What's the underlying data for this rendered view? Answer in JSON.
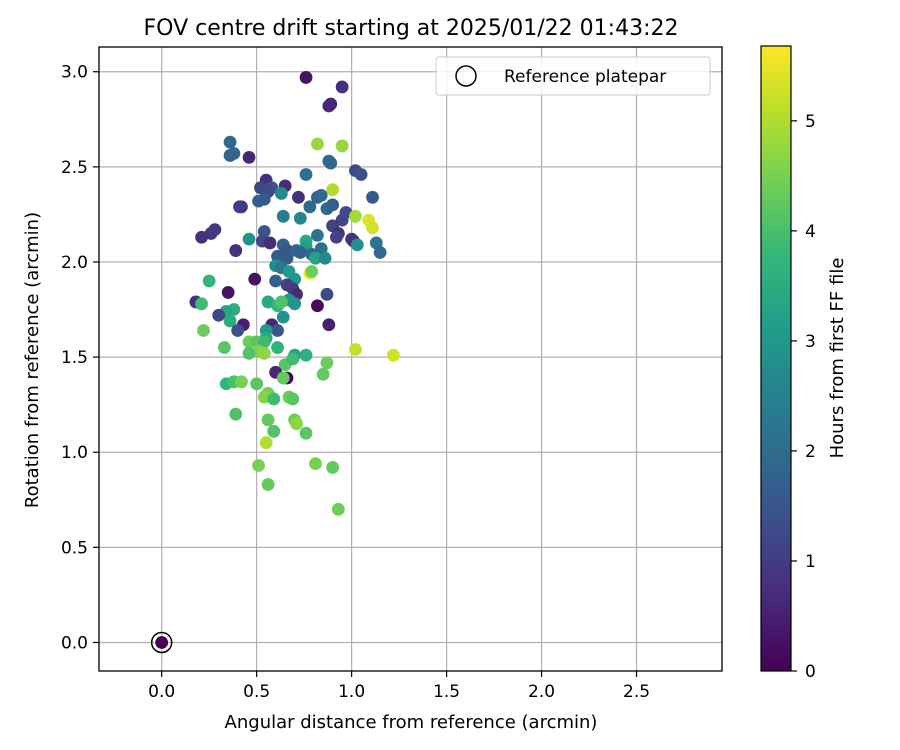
{
  "chart_data": {
    "type": "scatter",
    "title": "FOV centre drift starting at 2025/01/22 01:43:22",
    "xlabel": "Angular distance from reference (arcmin)",
    "ylabel": "Rotation from reference (arcmin)",
    "xlim": [
      -0.33,
      2.95
    ],
    "ylim": [
      -0.15,
      3.13
    ],
    "xticks": [
      "0.0",
      "0.5",
      "1.0",
      "1.5",
      "2.0",
      "2.5"
    ],
    "xtick_values": [
      0,
      0.5,
      1,
      1.5,
      2,
      2.5
    ],
    "yticks": [
      "0.0",
      "0.5",
      "1.0",
      "1.5",
      "2.0",
      "2.5",
      "3.0"
    ],
    "ytick_values": [
      0,
      0.5,
      1,
      1.5,
      2,
      2.5,
      3
    ],
    "grid": true,
    "legend": {
      "position": "top-right",
      "label": "Reference platepar"
    },
    "colorbar": {
      "label": "Hours from first FF file",
      "min": 0,
      "max": 5.68,
      "ticks": [
        "0",
        "1",
        "2",
        "3",
        "4",
        "5"
      ],
      "tick_values": [
        0,
        1,
        2,
        3,
        4,
        5
      ],
      "colormap": "viridis"
    },
    "reference_point": {
      "x": 0,
      "y": 0,
      "c": 0
    },
    "series": [
      {
        "points": [
          [
            0.76,
            2.97,
            0.3
          ],
          [
            0.95,
            2.92,
            0.8
          ],
          [
            0.89,
            2.83,
            0.6
          ],
          [
            0.88,
            2.82,
            0.6
          ],
          [
            0.36,
            2.63,
            1.9
          ],
          [
            0.38,
            2.57,
            1.8
          ],
          [
            0.36,
            2.56,
            1.8
          ],
          [
            0.46,
            2.55,
            0.6
          ],
          [
            0.82,
            2.62,
            4.8
          ],
          [
            0.95,
            2.61,
            4.8
          ],
          [
            0.88,
            2.53,
            1.9
          ],
          [
            0.89,
            2.52,
            1.9
          ],
          [
            0.55,
            2.43,
            0.8
          ],
          [
            0.65,
            2.4,
            0.7
          ],
          [
            0.52,
            2.39,
            1.2
          ],
          [
            0.58,
            2.39,
            1.5
          ],
          [
            0.56,
            2.37,
            1.3
          ],
          [
            0.63,
            2.36,
            2.7
          ],
          [
            0.51,
            2.32,
            1.7
          ],
          [
            0.54,
            2.33,
            1.6
          ],
          [
            0.72,
            2.34,
            0.8
          ],
          [
            0.76,
            2.46,
            2.1
          ],
          [
            0.82,
            2.34,
            1.8
          ],
          [
            0.84,
            2.35,
            1.9
          ],
          [
            0.9,
            2.38,
            5.0
          ],
          [
            1.02,
            2.48,
            1.3
          ],
          [
            1.05,
            2.46,
            1.4
          ],
          [
            1.11,
            2.34,
            1.6
          ],
          [
            0.41,
            2.29,
            1.0
          ],
          [
            0.42,
            2.29,
            1.0
          ],
          [
            0.78,
            2.29,
            1.9
          ],
          [
            0.87,
            2.28,
            2.0
          ],
          [
            0.9,
            2.3,
            1.7
          ],
          [
            0.97,
            2.26,
            1.3
          ],
          [
            0.64,
            2.24,
            2.4
          ],
          [
            0.73,
            2.23,
            2.6
          ],
          [
            1.02,
            2.24,
            4.9
          ],
          [
            1.09,
            2.22,
            5.4
          ],
          [
            1.11,
            2.18,
            5.3
          ],
          [
            0.95,
            2.22,
            1.2
          ],
          [
            0.9,
            2.19,
            1.1
          ],
          [
            0.93,
            2.15,
            0.8
          ],
          [
            1.0,
            2.12,
            0.9
          ],
          [
            0.54,
            2.16,
            1.5
          ],
          [
            0.53,
            2.11,
            1.2
          ],
          [
            0.28,
            2.17,
            0.9
          ],
          [
            0.26,
            2.15,
            0.9
          ],
          [
            0.21,
            2.13,
            0.8
          ],
          [
            0.46,
            2.12,
            2.9
          ],
          [
            0.57,
            2.1,
            0.7
          ],
          [
            0.64,
            2.09,
            1.7
          ],
          [
            0.66,
            2.06,
            1.5
          ],
          [
            0.71,
            2.06,
            1.8
          ],
          [
            0.76,
            2.11,
            3.4
          ],
          [
            0.76,
            2.08,
            3.2
          ],
          [
            0.82,
            2.14,
            2.2
          ],
          [
            0.84,
            2.07,
            2.1
          ],
          [
            0.92,
            2.13,
            1.1
          ],
          [
            1.01,
            2.11,
            0.8
          ],
          [
            1.03,
            2.09,
            2.8
          ],
          [
            1.13,
            2.1,
            2.2
          ],
          [
            1.15,
            2.05,
            1.9
          ],
          [
            0.39,
            2.06,
            0.8
          ],
          [
            0.61,
            2.03,
            1.6
          ],
          [
            0.66,
            2.02,
            1.6
          ],
          [
            0.73,
            2.05,
            1.7
          ],
          [
            0.79,
            2.04,
            1.9
          ],
          [
            0.81,
            2.02,
            3.3
          ],
          [
            0.86,
            2.02,
            2.7
          ],
          [
            0.6,
            1.98,
            2.8
          ],
          [
            0.63,
            1.97,
            2.3
          ],
          [
            0.67,
            1.95,
            3.1
          ],
          [
            0.7,
            1.91,
            3.0
          ],
          [
            0.78,
            1.94,
            5.6
          ],
          [
            0.79,
            1.95,
            4.4
          ],
          [
            0.49,
            1.91,
            0.3
          ],
          [
            0.6,
            1.9,
            1.7
          ],
          [
            0.25,
            1.9,
            3.7
          ],
          [
            0.66,
            1.88,
            1.1
          ],
          [
            0.69,
            1.86,
            1.0
          ],
          [
            0.71,
            1.83,
            0.7
          ],
          [
            0.87,
            1.83,
            1.3
          ],
          [
            0.67,
            1.8,
            3.0
          ],
          [
            0.18,
            1.79,
            0.8
          ],
          [
            0.21,
            1.78,
            3.9
          ],
          [
            0.56,
            1.79,
            3.4
          ],
          [
            0.61,
            1.77,
            3.7
          ],
          [
            0.63,
            1.79,
            4.1
          ],
          [
            0.7,
            1.78,
            3.0
          ],
          [
            0.82,
            1.77,
            0.2
          ],
          [
            0.35,
            1.84,
            0.3
          ],
          [
            0.38,
            1.75,
            3.6
          ],
          [
            0.34,
            1.74,
            3.3
          ],
          [
            0.3,
            1.72,
            1.2
          ],
          [
            0.36,
            1.69,
            3.5
          ],
          [
            0.43,
            1.67,
            0.5
          ],
          [
            0.4,
            1.64,
            1.4
          ],
          [
            0.58,
            1.67,
            0.6
          ],
          [
            0.61,
            1.64,
            1.6
          ],
          [
            0.64,
            1.71,
            2.9
          ],
          [
            0.88,
            1.67,
            0.5
          ],
          [
            0.22,
            1.64,
            4.4
          ],
          [
            0.55,
            1.64,
            3.1
          ],
          [
            0.55,
            1.6,
            3.4
          ],
          [
            0.46,
            1.58,
            4.4
          ],
          [
            0.5,
            1.58,
            4.2
          ],
          [
            0.54,
            1.58,
            3.9
          ],
          [
            0.33,
            1.55,
            4.2
          ],
          [
            0.51,
            1.53,
            4.6
          ],
          [
            0.46,
            1.52,
            4.1
          ],
          [
            0.54,
            1.52,
            4.7
          ],
          [
            0.61,
            1.55,
            3.7
          ],
          [
            0.7,
            1.51,
            3.3
          ],
          [
            0.76,
            1.51,
            3.6
          ],
          [
            1.02,
            1.54,
            5.2
          ],
          [
            1.22,
            1.51,
            5.3
          ],
          [
            0.65,
            1.46,
            4.2
          ],
          [
            0.69,
            1.49,
            3.9
          ],
          [
            0.87,
            1.47,
            4.4
          ],
          [
            0.6,
            1.42,
            0.6
          ],
          [
            0.66,
            1.39,
            0.1
          ],
          [
            0.64,
            1.39,
            4.3
          ],
          [
            0.85,
            1.41,
            4.3
          ],
          [
            0.34,
            1.36,
            3.7
          ],
          [
            0.38,
            1.37,
            4.0
          ],
          [
            0.42,
            1.37,
            4.5
          ],
          [
            0.5,
            1.36,
            4.2
          ],
          [
            0.56,
            1.31,
            4.5
          ],
          [
            0.54,
            1.29,
            4.6
          ],
          [
            0.59,
            1.28,
            3.9
          ],
          [
            0.67,
            1.29,
            4.4
          ],
          [
            0.69,
            1.28,
            4.2
          ],
          [
            0.39,
            1.2,
            4.1
          ],
          [
            0.56,
            1.17,
            4.3
          ],
          [
            0.7,
            1.17,
            4.4
          ],
          [
            0.71,
            1.15,
            4.7
          ],
          [
            0.59,
            1.11,
            4.1
          ],
          [
            0.76,
            1.1,
            4.2
          ],
          [
            0.55,
            1.05,
            5.0
          ],
          [
            0.51,
            0.93,
            4.5
          ],
          [
            0.81,
            0.94,
            4.5
          ],
          [
            0.9,
            0.92,
            4.3
          ],
          [
            0.56,
            0.83,
            4.3
          ],
          [
            0.93,
            0.7,
            4.4
          ]
        ]
      }
    ]
  }
}
